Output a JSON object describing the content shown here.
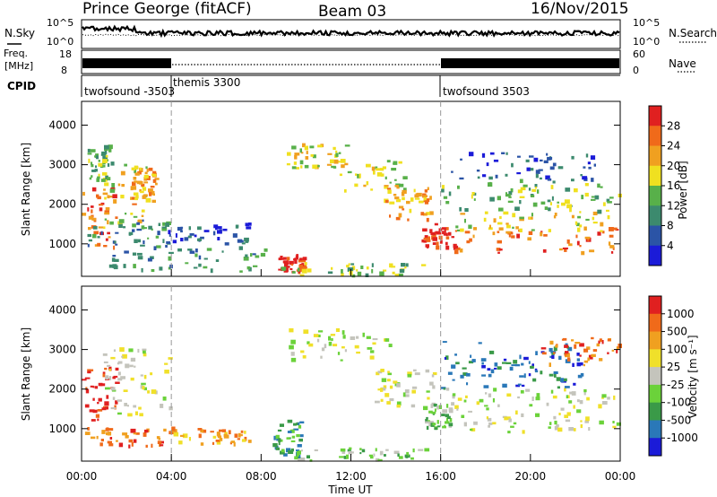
{
  "header": {
    "station": "Prince George (fitACF)",
    "beam": "Beam 03",
    "date": "16/Nov/2015"
  },
  "colors": {
    "power_scale": [
      "#1b1bd8",
      "#2b54a6",
      "#3c8a6e",
      "#58b04a",
      "#f0e020",
      "#f0a020",
      "#f06a1a",
      "#e02020"
    ],
    "velocity_scale": [
      "#1b1bd8",
      "#2a78b8",
      "#3a9a48",
      "#6bd23a",
      "#c4c4bc",
      "#f0e02a",
      "#f0a020",
      "#f06a1a",
      "#e02020"
    ]
  },
  "panels": {
    "nsky": {
      "label": "N.Sky",
      "left_ticks": [
        "10^5",
        "10^0"
      ],
      "right_ticks": [
        "10^5",
        "10^0"
      ],
      "right_label": "N.Search"
    },
    "freq": {
      "label_line1": "Freq.",
      "label_line2": "[MHz]",
      "left_ticks": [
        "18",
        "8"
      ],
      "right_ticks": [
        "60",
        "0"
      ],
      "right_label": "Nave"
    },
    "cpid": {
      "label": "CPID",
      "segments": [
        {
          "name": "twofsound -3503",
          "start": "00:00",
          "end": "04:00"
        },
        {
          "name": "themis 3300",
          "start": "04:00",
          "end": "16:00"
        },
        {
          "name": "twofsound 3503",
          "start": "16:00",
          "end": "00:00"
        }
      ]
    },
    "power": {
      "ylabel": "Slant Range [km]",
      "colorbar_label": "Power [dB]",
      "colorbar_ticks": [
        "28",
        "24",
        "20",
        "16",
        "12",
        "8",
        "4"
      ]
    },
    "velocity": {
      "ylabel": "Slant Range [km]",
      "colorbar_label": "Velocity [m s⁻¹]",
      "colorbar_ticks": [
        "1000",
        "500",
        "100",
        "25",
        "-25",
        "-100",
        "-500",
        "-1000"
      ]
    }
  },
  "chart_data": [
    {
      "type": "heatmap",
      "title": "Power [dB]",
      "xlabel": "Time UT",
      "ylabel": "Slant Range [km]",
      "x_ticks": [
        "00:00",
        "04:00",
        "08:00",
        "12:00",
        "16:00",
        "20:00",
        "00:00"
      ],
      "xlim_hours": [
        0,
        24
      ],
      "y_ticks": [
        1000,
        2000,
        3000,
        4000
      ],
      "ylim": [
        180,
        4600
      ],
      "vertical_markers_hours": [
        4,
        16
      ],
      "regions": [
        {
          "t0": 0.1,
          "t1": 1.6,
          "r0": 700,
          "r1": 2400,
          "level": 6
        },
        {
          "t0": 1.0,
          "t1": 3.0,
          "r0": 1400,
          "r1": 3000,
          "level": 4
        },
        {
          "t0": 2.3,
          "t1": 3.4,
          "r0": 2000,
          "r1": 2900,
          "level": 5
        },
        {
          "t0": 0.3,
          "t1": 1.4,
          "r0": 2600,
          "r1": 3500,
          "level": 3
        },
        {
          "t0": 0.2,
          "t1": 4.0,
          "r0": 900,
          "r1": 1600,
          "level": 2
        },
        {
          "t0": 1.2,
          "t1": 8.5,
          "r0": 300,
          "r1": 900,
          "level": 2
        },
        {
          "t0": 3.8,
          "t1": 7.5,
          "r0": 1000,
          "r1": 1500,
          "level": 1
        },
        {
          "t0": 8.7,
          "t1": 10.0,
          "r0": 250,
          "r1": 700,
          "level": 7
        },
        {
          "t0": 9.0,
          "t1": 15.5,
          "r0": 180,
          "r1": 500,
          "level": 3
        },
        {
          "t0": 9.2,
          "t1": 12.0,
          "r0": 2900,
          "r1": 3500,
          "level": 4
        },
        {
          "t0": 11.5,
          "t1": 14.5,
          "r0": 2300,
          "r1": 3100,
          "level": 4
        },
        {
          "t0": 13.5,
          "t1": 15.6,
          "r0": 1600,
          "r1": 2400,
          "level": 5
        },
        {
          "t0": 15.2,
          "t1": 16.8,
          "r0": 900,
          "r1": 1500,
          "level": 7
        },
        {
          "t0": 16.5,
          "t1": 24.0,
          "r0": 750,
          "r1": 1400,
          "level": 6
        },
        {
          "t0": 16.5,
          "t1": 24.0,
          "r0": 1300,
          "r1": 1800,
          "level": 4
        },
        {
          "t0": 16.0,
          "t1": 24.0,
          "r0": 1800,
          "r1": 2600,
          "level": 3
        },
        {
          "t0": 16.5,
          "t1": 23.0,
          "r0": 2600,
          "r1": 3300,
          "level": 1
        }
      ]
    },
    {
      "type": "heatmap",
      "title": "Velocity [m s⁻¹]",
      "xlabel": "Time UT",
      "ylabel": "Slant Range [km]",
      "x_ticks": [
        "00:00",
        "04:00",
        "08:00",
        "12:00",
        "16:00",
        "20:00",
        "00:00"
      ],
      "xlim_hours": [
        0,
        24
      ],
      "y_ticks": [
        1000,
        2000,
        3000,
        4000
      ],
      "ylim": [
        180,
        4600
      ],
      "vertical_markers_hours": [
        4,
        16
      ],
      "regions": [
        {
          "t0": 0.1,
          "t1": 1.6,
          "r0": 1200,
          "r1": 2600,
          "level": 8
        },
        {
          "t0": 0.2,
          "t1": 4.0,
          "r0": 550,
          "r1": 1000,
          "level": 7
        },
        {
          "t0": 4.0,
          "t1": 7.6,
          "r0": 600,
          "r1": 1000,
          "level": 6
        },
        {
          "t0": 1.0,
          "t1": 4.0,
          "r0": 1300,
          "r1": 3000,
          "level": 4
        },
        {
          "t0": 8.6,
          "t1": 10.0,
          "r0": 250,
          "r1": 1200,
          "level": 2
        },
        {
          "t0": 9.0,
          "t1": 15.5,
          "r0": 180,
          "r1": 500,
          "level": 3
        },
        {
          "t0": 9.2,
          "t1": 14.0,
          "r0": 2700,
          "r1": 3500,
          "level": 4
        },
        {
          "t0": 13.0,
          "t1": 15.8,
          "r0": 1500,
          "r1": 2500,
          "level": 4
        },
        {
          "t0": 15.3,
          "t1": 16.5,
          "r0": 1000,
          "r1": 1600,
          "level": 3
        },
        {
          "t0": 16.3,
          "t1": 24.0,
          "r0": 900,
          "r1": 2000,
          "level": 4
        },
        {
          "t0": 16.0,
          "t1": 22.5,
          "r0": 2000,
          "r1": 3200,
          "level": 1
        },
        {
          "t0": 20.5,
          "t1": 24.0,
          "r0": 2600,
          "r1": 3300,
          "level": 7
        }
      ]
    }
  ]
}
